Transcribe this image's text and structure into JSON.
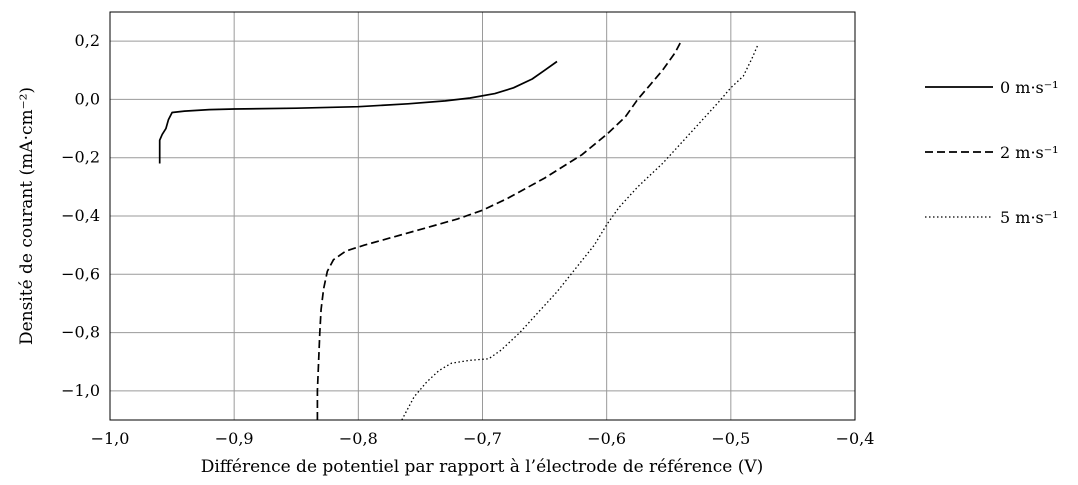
{
  "chart_data": {
    "type": "line",
    "title": "",
    "xlabel": "Différence de potentiel par rapport à l’électrode de référence (V)",
    "ylabel": "Densité de courant (mA·cm⁻²)",
    "xlim": [
      -1.0,
      -0.4
    ],
    "ylim": [
      -1.1,
      0.3
    ],
    "xticks": [
      -1.0,
      -0.9,
      -0.8,
      -0.7,
      -0.6,
      -0.5,
      -0.4
    ],
    "xtick_labels": [
      "−1,0",
      "−0,9",
      "−0,8",
      "−0,7",
      "−0,6",
      "−0,5",
      "−0,4"
    ],
    "yticks": [
      0.2,
      0.0,
      -0.2,
      -0.4,
      -0.6,
      -0.8,
      -1.0
    ],
    "ytick_labels": [
      "0,2",
      "0,0",
      "−0,2",
      "−0,4",
      "−0,6",
      "−0,8",
      "−1,0"
    ],
    "grid": true,
    "legend_position": "right",
    "series": [
      {
        "name": "0 m·s⁻¹",
        "style": "solid",
        "color": "#000000",
        "x": [
          -0.96,
          -0.96,
          -0.958,
          -0.955,
          -0.953,
          -0.95,
          -0.94,
          -0.92,
          -0.9,
          -0.85,
          -0.8,
          -0.76,
          -0.73,
          -0.71,
          -0.69,
          -0.675,
          -0.66,
          -0.65,
          -0.64
        ],
        "y": [
          -0.22,
          -0.14,
          -0.12,
          -0.1,
          -0.07,
          -0.045,
          -0.04,
          -0.035,
          -0.033,
          -0.03,
          -0.025,
          -0.015,
          -0.005,
          0.005,
          0.02,
          0.04,
          0.07,
          0.1,
          0.13
        ]
      },
      {
        "name": "2 m·s⁻¹",
        "style": "dashed",
        "color": "#000000",
        "x": [
          -0.833,
          -0.833,
          -0.832,
          -0.831,
          -0.83,
          -0.828,
          -0.825,
          -0.82,
          -0.81,
          -0.795,
          -0.77,
          -0.745,
          -0.72,
          -0.7,
          -0.68,
          -0.65,
          -0.62,
          -0.6,
          -0.585,
          -0.575,
          -0.565,
          -0.555,
          -0.545,
          -0.54
        ],
        "y": [
          -1.1,
          -1.0,
          -0.9,
          -0.8,
          -0.72,
          -0.65,
          -0.59,
          -0.55,
          -0.52,
          -0.5,
          -0.47,
          -0.44,
          -0.41,
          -0.38,
          -0.34,
          -0.27,
          -0.19,
          -0.12,
          -0.06,
          0.0,
          0.05,
          0.1,
          0.16,
          0.2
        ]
      },
      {
        "name": "5 m·s⁻¹",
        "style": "dotted",
        "color": "#000000",
        "x": [
          -0.765,
          -0.755,
          -0.745,
          -0.735,
          -0.725,
          -0.71,
          -0.695,
          -0.685,
          -0.67,
          -0.655,
          -0.64,
          -0.625,
          -0.61,
          -0.6,
          -0.59,
          -0.575,
          -0.555,
          -0.54,
          -0.525,
          -0.51,
          -0.5,
          -0.49,
          -0.483,
          -0.478
        ],
        "y": [
          -1.1,
          -1.02,
          -0.97,
          -0.93,
          -0.905,
          -0.895,
          -0.89,
          -0.86,
          -0.8,
          -0.73,
          -0.66,
          -0.58,
          -0.5,
          -0.43,
          -0.37,
          -0.3,
          -0.22,
          -0.15,
          -0.08,
          -0.01,
          0.04,
          0.08,
          0.14,
          0.19
        ]
      }
    ]
  }
}
